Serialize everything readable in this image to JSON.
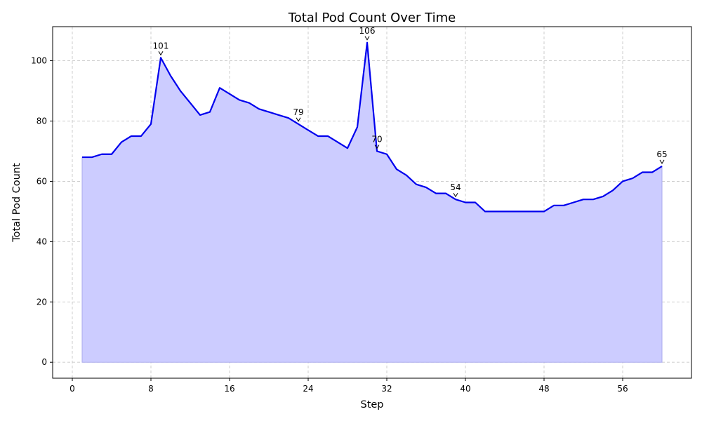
{
  "chart_data": {
    "type": "area",
    "title": "Total Pod Count Over Time",
    "xlabel": "Step",
    "ylabel": "Total Pod Count",
    "xlim": [
      -2,
      63
    ],
    "ylim": [
      -5.3,
      111.3
    ],
    "xticks": [
      0,
      8,
      16,
      24,
      32,
      40,
      48,
      56
    ],
    "yticks": [
      0,
      20,
      40,
      60,
      80,
      100
    ],
    "grid": true,
    "line_color": "#0000ee",
    "fill_color": "#ccccff",
    "series": [
      {
        "x": [
          1,
          2,
          3,
          4,
          5,
          6,
          7,
          8,
          9,
          10,
          11,
          12,
          13,
          14,
          15,
          16,
          17,
          18,
          19,
          20,
          21,
          22,
          23,
          24,
          25,
          26,
          27,
          28,
          29,
          30,
          31,
          32,
          33,
          34,
          35,
          36,
          37,
          38,
          39,
          40,
          41,
          42,
          43,
          44,
          45,
          46,
          47,
          48,
          49,
          50,
          51,
          52,
          53,
          54,
          55,
          56,
          57,
          58,
          59,
          60
        ],
        "values": [
          68,
          68,
          69,
          69,
          73,
          75,
          75,
          79,
          101,
          95,
          90,
          86,
          82,
          83,
          91,
          89,
          87,
          86,
          84,
          83,
          82,
          81,
          79,
          77,
          75,
          75,
          73,
          71,
          78,
          106,
          70,
          69,
          64,
          62,
          59,
          58,
          56,
          56,
          54,
          53,
          53,
          50,
          50,
          50,
          50,
          50,
          50,
          50,
          52,
          52,
          53,
          54,
          54,
          55,
          57,
          60,
          61,
          63,
          63,
          65
        ]
      }
    ],
    "annotations": [
      {
        "x": 9,
        "y": 101,
        "text": "101"
      },
      {
        "x": 23,
        "y": 79,
        "text": "79"
      },
      {
        "x": 30,
        "y": 106,
        "text": "106"
      },
      {
        "x": 31,
        "y": 70,
        "text": "70"
      },
      {
        "x": 39,
        "y": 54,
        "text": "54"
      },
      {
        "x": 60,
        "y": 65,
        "text": "65"
      }
    ]
  }
}
